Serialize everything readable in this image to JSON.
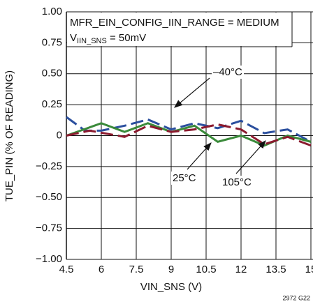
{
  "chart_data": {
    "type": "line",
    "title": "MFR_EIN_CONFIG_IIN_RANGE = MEDIUM",
    "subtitle": {
      "main": "V",
      "sub": "IIN_SNS",
      "rest": " = 50mV"
    },
    "x_label": "VIN_SNS (V)",
    "y_label": "TUE_PIN (% OF READING)",
    "note": "2972 G22",
    "xlim": [
      4.5,
      15
    ],
    "xticks": [
      4.5,
      6,
      7.5,
      9,
      10.5,
      12,
      13.5,
      15
    ],
    "ylim": [
      -1,
      1
    ],
    "yticks": [
      {
        "value": -1,
        "label": "−1.00"
      },
      {
        "value": -0.75,
        "label": "−0.75"
      },
      {
        "value": -0.5,
        "label": "−0.50"
      },
      {
        "value": -0.25,
        "label": "−0.25"
      },
      0,
      {
        "value": 0.25,
        "label": "0.25"
      },
      {
        "value": 0.5,
        "label": "0.50"
      },
      {
        "value": 0.75,
        "label": "0.75"
      },
      {
        "value": 1,
        "label": "1.00"
      }
    ],
    "grid": true,
    "series": [
      {
        "name": "–40°C",
        "color": "#2b4f9e",
        "style": "dashed",
        "x": [
          4.5,
          5.3,
          6,
          7,
          8,
          9,
          10,
          11,
          12,
          13,
          14,
          15
        ],
        "values": [
          0.15,
          0.04,
          0.04,
          0.08,
          0.13,
          0.05,
          0.1,
          0.06,
          0.12,
          0.02,
          0.05,
          -0.05
        ]
      },
      {
        "name": "25°C",
        "color": "#3a8a3a",
        "style": "solid",
        "x": [
          4.5,
          6,
          7,
          8,
          9,
          10,
          11,
          12,
          13,
          14,
          15
        ],
        "values": [
          0,
          0.1,
          0.03,
          0.1,
          0.03,
          0.08,
          -0.05,
          0,
          -0.08,
          0,
          -0.05
        ]
      },
      {
        "name": "105°C",
        "color": "#8b1a2e",
        "style": "dashed",
        "x": [
          4.5,
          5.5,
          7,
          8,
          9,
          10,
          11,
          12,
          13,
          14,
          15
        ],
        "values": [
          0,
          0.04,
          -0.01,
          0.08,
          0.03,
          0.05,
          0.09,
          0.05,
          -0.07,
          -0.01,
          -0.08
        ]
      }
    ]
  }
}
